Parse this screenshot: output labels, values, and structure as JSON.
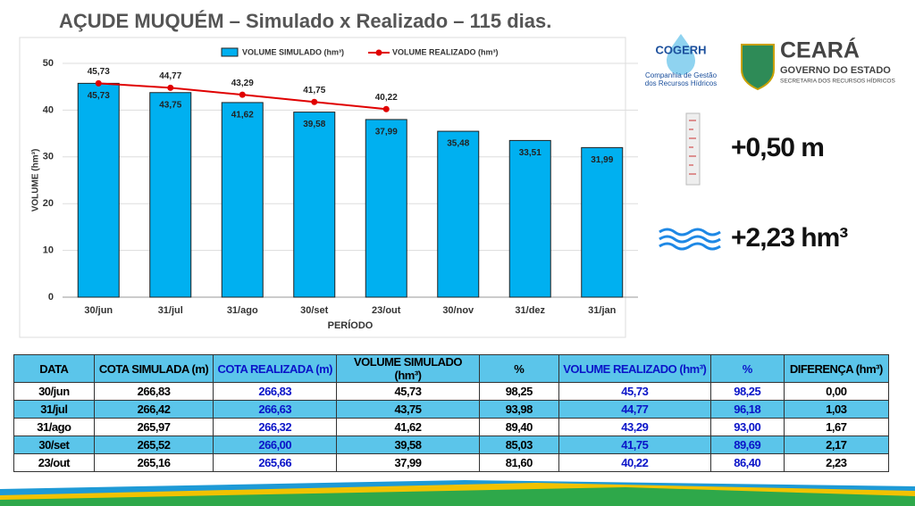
{
  "title": "AÇUDE MUQUÉM – Simulado x Realizado – 115 dias.",
  "chart_data": {
    "type": "bar",
    "categories": [
      "30/jun",
      "31/jul",
      "31/ago",
      "30/set",
      "23/out",
      "30/nov",
      "31/dez",
      "31/jan"
    ],
    "series": [
      {
        "name": "VOLUME SIMULADO (hm³)",
        "type": "bar",
        "color": "#00b0f0",
        "values": [
          45.73,
          43.75,
          41.62,
          39.58,
          37.99,
          35.48,
          33.51,
          31.99
        ],
        "value_labels": [
          "45,73",
          "43,75",
          "41,62",
          "39,58",
          "37,99",
          "35,48",
          "33,51",
          "31,99"
        ]
      },
      {
        "name": "VOLUME REALIZADO (hm³)",
        "type": "line",
        "color": "#e00000",
        "values": [
          45.73,
          44.77,
          43.29,
          41.75,
          40.22,
          null,
          null,
          null
        ],
        "value_labels": [
          "45,73",
          "44,77",
          "43,29",
          "41,75",
          "40,22",
          null,
          null,
          null
        ]
      }
    ],
    "xlabel": "PERÍODO",
    "ylabel": "VOLUME (hm³)",
    "ylim": [
      0,
      50
    ],
    "yticks": [
      0,
      10,
      20,
      30,
      40,
      50
    ],
    "grid": true,
    "legend": "top"
  },
  "logos": {
    "cogerh": "COGERH",
    "cogerh_sub1": "Companhia de Gestão",
    "cogerh_sub2": "dos Recursos Hídricos",
    "ceara": "CEARÁ",
    "ceara_sub": "GOVERNO DO ESTADO",
    "ceara_dept": "SECRETARIA DOS RECURSOS HÍDRICOS"
  },
  "indicators": [
    "+0,50 m",
    "+2,23 hm³"
  ],
  "table": {
    "header": [
      "DATA",
      "COTA SIMULADA (m)",
      "COTA REALIZADA (m)",
      "VOLUME SIMULADO (hm³)",
      "%",
      "VOLUME REALIZADO (hm³)",
      "%",
      "DIFERENÇA (hm³)"
    ],
    "rows": [
      [
        "30/jun",
        "266,83",
        "266,83",
        "45,73",
        "98,25",
        "45,73",
        "98,25",
        "0,00"
      ],
      [
        "31/jul",
        "266,42",
        "266,63",
        "43,75",
        "93,98",
        "44,77",
        "96,18",
        "1,03"
      ],
      [
        "31/ago",
        "265,97",
        "266,32",
        "41,62",
        "89,40",
        "43,29",
        "93,00",
        "1,67"
      ],
      [
        "30/set",
        "265,52",
        "266,00",
        "39,58",
        "85,03",
        "41,75",
        "89,69",
        "2,17"
      ],
      [
        "23/out",
        "265,16",
        "265,66",
        "37,99",
        "81,60",
        "40,22",
        "86,40",
        "2,23"
      ]
    ]
  }
}
